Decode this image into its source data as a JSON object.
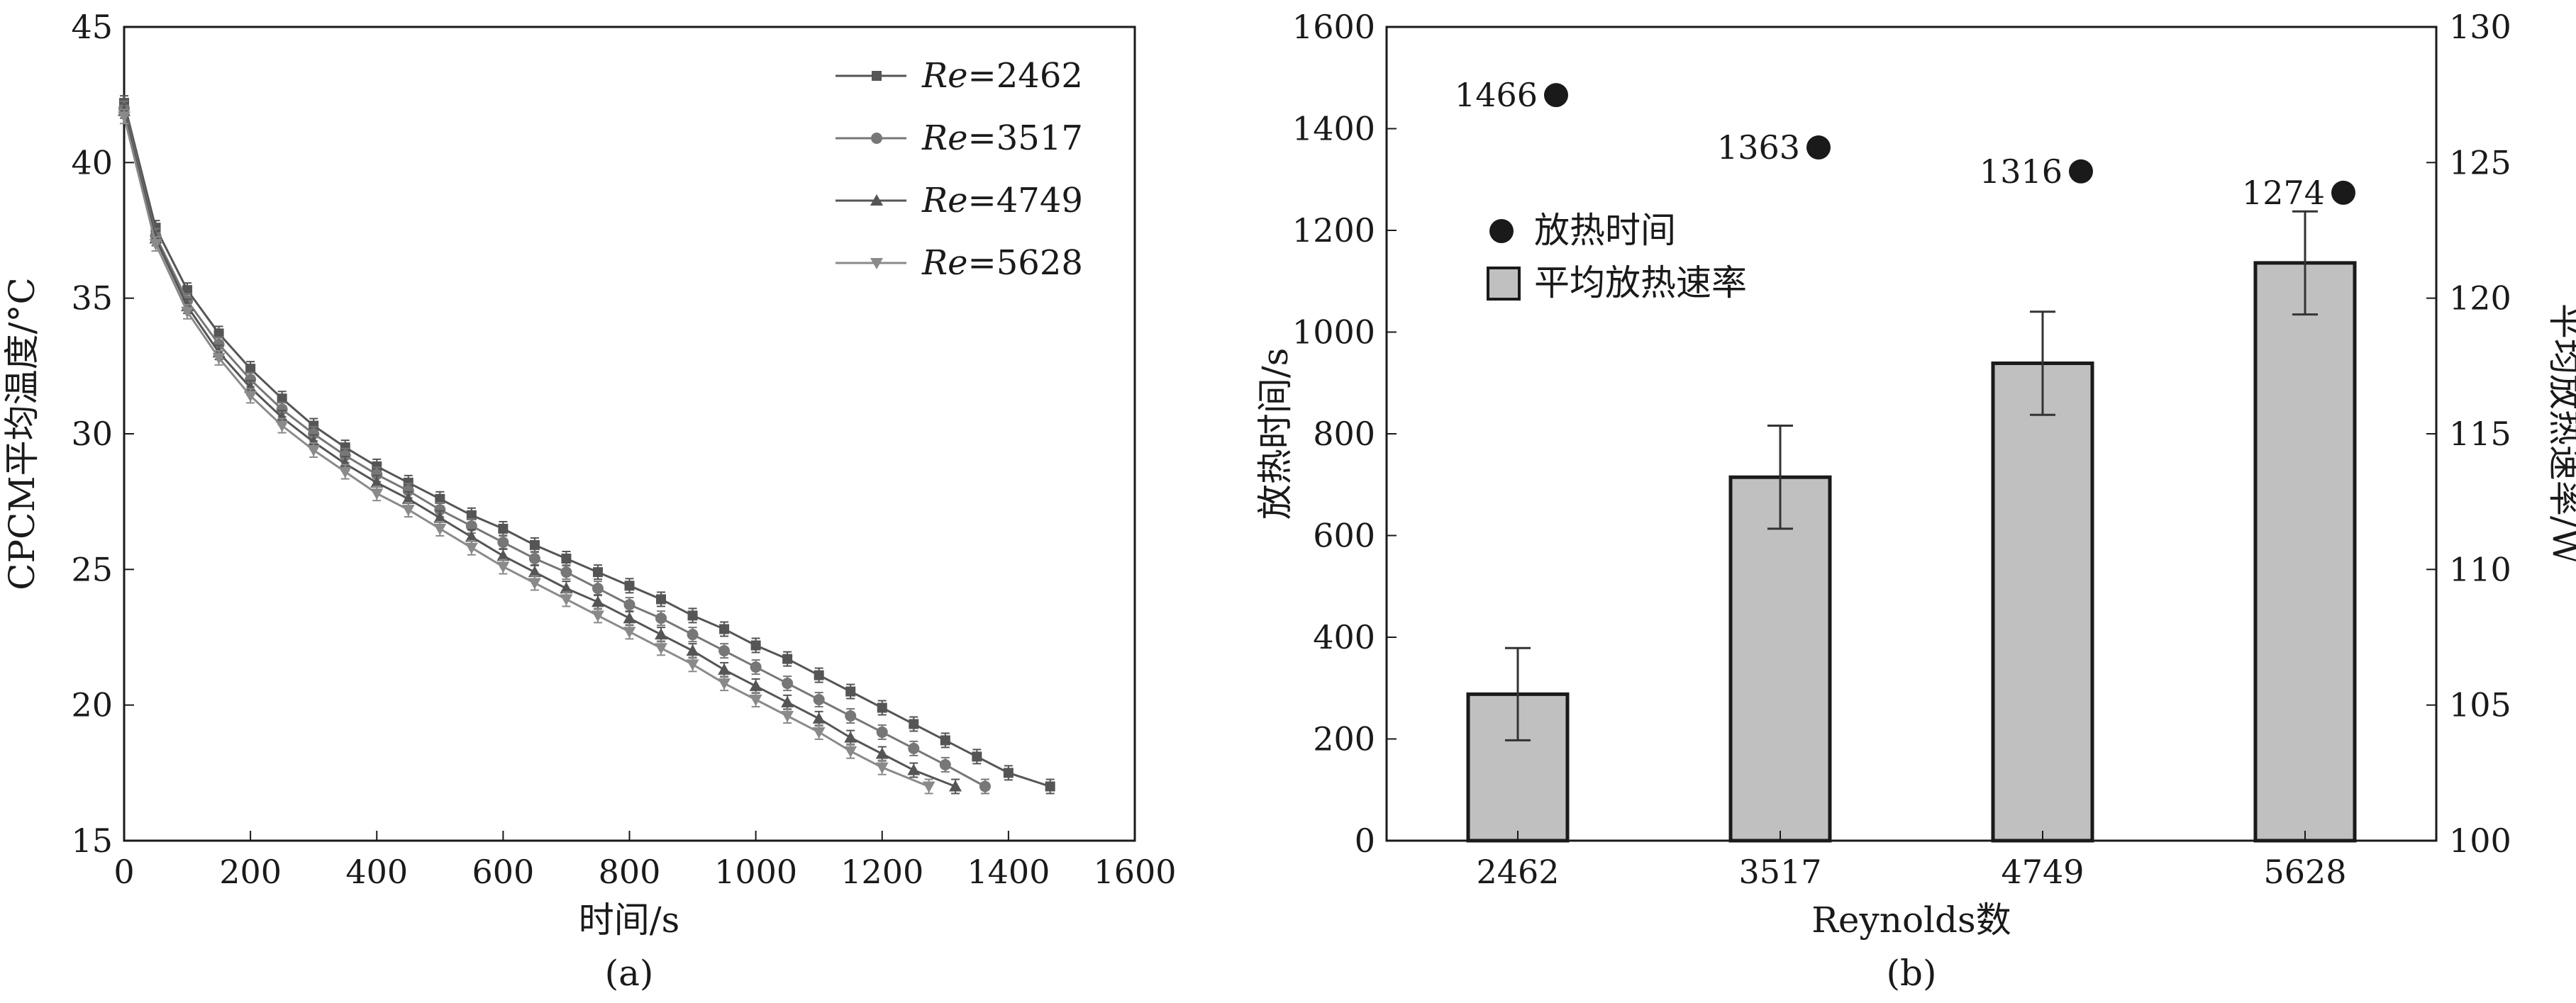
{
  "chart_data": [
    {
      "type": "line",
      "panel_label": "(a)",
      "xlabel": "时间/s",
      "ylabel": "CPCM平均温度/°C",
      "xlim": [
        0,
        1600
      ],
      "ylim": [
        15,
        45
      ],
      "xticks": [
        "0",
        "200",
        "400",
        "600",
        "800",
        "1000",
        "1200",
        "1400",
        "1600"
      ],
      "yticks": [
        "15",
        "20",
        "25",
        "30",
        "35",
        "40",
        "45"
      ],
      "error_bars": true,
      "legend_placement": "top-right",
      "series": [
        {
          "name": "Re=2462",
          "name_prefix": "Re",
          "name_value": "=2462",
          "marker": "square",
          "color": "#555555",
          "x": [
            0,
            50,
            100,
            150,
            200,
            250,
            300,
            350,
            400,
            450,
            500,
            550,
            600,
            650,
            700,
            750,
            800,
            850,
            900,
            950,
            1000,
            1050,
            1100,
            1150,
            1200,
            1250,
            1300,
            1350,
            1400,
            1466
          ],
          "y": [
            42.2,
            37.6,
            35.3,
            33.7,
            32.4,
            31.3,
            30.3,
            29.5,
            28.8,
            28.2,
            27.6,
            27.0,
            26.5,
            25.9,
            25.4,
            24.9,
            24.4,
            23.9,
            23.3,
            22.8,
            22.2,
            21.7,
            21.1,
            20.5,
            19.9,
            19.3,
            18.7,
            18.1,
            17.5,
            17.0
          ]
        },
        {
          "name": "Re=3517",
          "name_prefix": "Re",
          "name_value": "=3517",
          "marker": "circle",
          "color": "#777777",
          "x": [
            0,
            50,
            100,
            150,
            200,
            250,
            300,
            350,
            400,
            450,
            500,
            550,
            600,
            650,
            700,
            750,
            800,
            850,
            900,
            950,
            1000,
            1050,
            1100,
            1150,
            1200,
            1250,
            1300,
            1363
          ],
          "y": [
            42.0,
            37.3,
            34.9,
            33.3,
            32.0,
            30.9,
            30.0,
            29.2,
            28.5,
            27.9,
            27.2,
            26.6,
            26.0,
            25.4,
            24.9,
            24.3,
            23.7,
            23.2,
            22.6,
            22.0,
            21.4,
            20.8,
            20.2,
            19.6,
            19.0,
            18.4,
            17.8,
            17.0
          ]
        },
        {
          "name": "Re=4749",
          "name_prefix": "Re",
          "name_value": "=4749",
          "marker": "triangle",
          "color": "#555555",
          "x": [
            0,
            50,
            100,
            150,
            200,
            250,
            300,
            350,
            400,
            450,
            500,
            550,
            600,
            650,
            700,
            750,
            800,
            850,
            900,
            950,
            1000,
            1050,
            1100,
            1150,
            1200,
            1250,
            1316
          ],
          "y": [
            41.9,
            37.2,
            34.7,
            33.0,
            31.7,
            30.6,
            29.7,
            28.9,
            28.2,
            27.6,
            26.9,
            26.2,
            25.5,
            24.9,
            24.3,
            23.8,
            23.2,
            22.6,
            22.0,
            21.3,
            20.7,
            20.1,
            19.5,
            18.8,
            18.2,
            17.6,
            17.0
          ]
        },
        {
          "name": "Re=5628",
          "name_prefix": "Re",
          "name_value": "=5628",
          "marker": "triangle-down",
          "color": "#8a8a8a",
          "x": [
            0,
            50,
            100,
            150,
            200,
            250,
            300,
            350,
            400,
            450,
            500,
            550,
            600,
            650,
            700,
            750,
            800,
            850,
            900,
            950,
            1000,
            1050,
            1100,
            1150,
            1200,
            1274
          ],
          "y": [
            41.7,
            37.0,
            34.5,
            32.8,
            31.4,
            30.3,
            29.4,
            28.6,
            27.8,
            27.2,
            26.5,
            25.8,
            25.1,
            24.5,
            23.9,
            23.3,
            22.7,
            22.1,
            21.5,
            20.8,
            20.2,
            19.6,
            19.0,
            18.3,
            17.7,
            17.0
          ]
        }
      ]
    },
    {
      "type": "bar",
      "panel_label": "(b)",
      "xlabel": "Reynolds数",
      "ylabel": "放热时间/s",
      "ylabel_right": "平均放热速率/W",
      "categories": [
        "2462",
        "3517",
        "4749",
        "5628"
      ],
      "ylim": [
        0,
        1600
      ],
      "ylim_right": [
        100,
        130
      ],
      "yticks": [
        "0",
        "200",
        "400",
        "600",
        "800",
        "1000",
        "1200",
        "1400",
        "1600"
      ],
      "yticks_right": [
        "100",
        "105",
        "110",
        "115",
        "120",
        "125",
        "130"
      ],
      "legend_placement": "top-left",
      "series": [
        {
          "name": "放热时间",
          "kind": "scatter",
          "axis": "left",
          "marker": "circle",
          "color": "#1a1a1a",
          "values": [
            1466,
            1363,
            1316,
            1274
          ],
          "labels": [
            "1466",
            "1363",
            "1316",
            "1274"
          ]
        },
        {
          "name": "平均放热速率",
          "kind": "bar",
          "axis": "right",
          "color": "#c0c0c0",
          "values": [
            105.4,
            113.4,
            117.6,
            121.3
          ],
          "errors": [
            1.7,
            1.9,
            1.9,
            1.9
          ]
        }
      ]
    }
  ]
}
